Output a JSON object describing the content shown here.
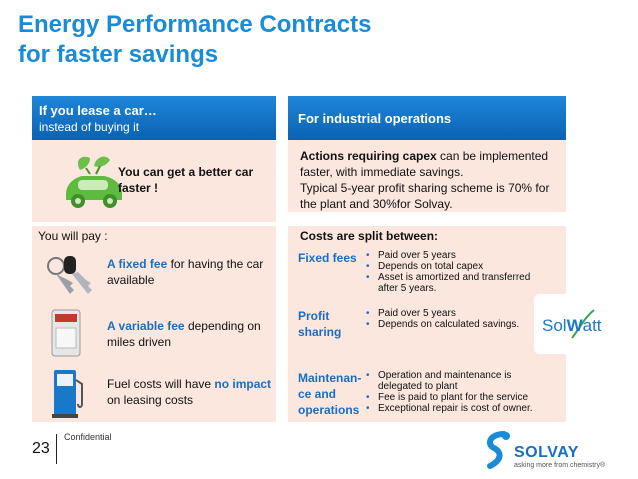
{
  "title": {
    "line1": "Energy Performance Contracts",
    "line2": "for faster savings"
  },
  "left": {
    "header_line1": "If you lease a car…",
    "header_line2": "instead of buying it",
    "intro": "You can get a better car faster !",
    "pay_label": "You will pay :",
    "items": [
      {
        "emph": "A fixed fee",
        "rest": " for having the car available"
      },
      {
        "emph": "A variable fee",
        "rest": " depending on miles driven"
      },
      {
        "pre": "Fuel costs will have ",
        "emph": "no impact",
        "rest": " on leasing costs"
      }
    ]
  },
  "right": {
    "header": "For industrial operations",
    "intro_bold": "Actions requiring capex",
    "intro_rest": " can be implemented faster, with immediate savings.",
    "intro_line2": "Typical 5-year profit sharing scheme is 70% for the plant and 30%for Solvay.",
    "split_label": "Costs are split between:",
    "rows": [
      {
        "label": "Fixed fees",
        "bullets": [
          "Paid over 5 years",
          "Depends on total capex",
          "Asset is amortized and transferred after 5 years."
        ]
      },
      {
        "label": "Profit sharing",
        "bullets": [
          "Paid over 5 years",
          "Depends on calculated savings."
        ]
      },
      {
        "label": "Maintenan-ce and operations",
        "bullets": [
          "Operation and maintenance is delegated to plant",
          "Fee is paid to plant for the service",
          "Exceptional repair is cost of owner."
        ]
      }
    ]
  },
  "logo_solwatt": {
    "part1": "Sol",
    "part2": "W",
    "part3": "att"
  },
  "footer": {
    "page_number": "23",
    "confidential": "Confidential",
    "brand": "SOLVAY",
    "tagline": "asking more from chemistry®"
  },
  "colors": {
    "title": "#1a8bd6",
    "header": "#0a62b4",
    "panel": "#fbe7de",
    "accent": "#1a6ec2"
  }
}
